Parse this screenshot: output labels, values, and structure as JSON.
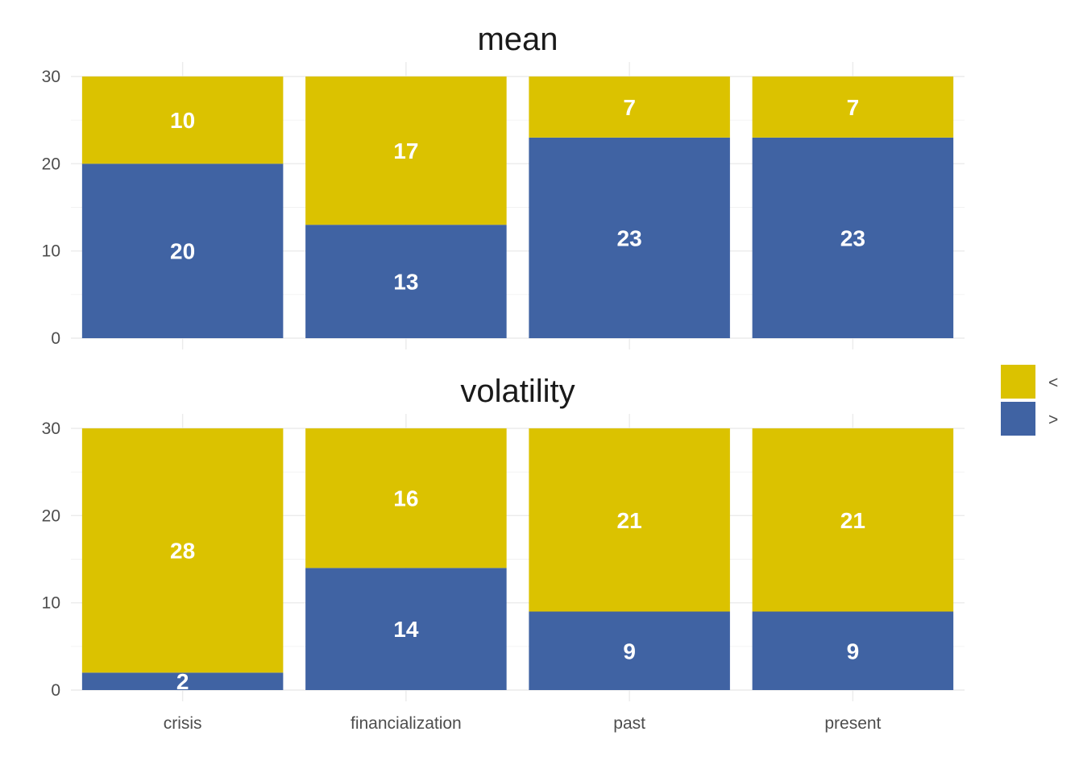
{
  "chart_data": {
    "type": "bar",
    "stacked": true,
    "categories": [
      "crisis",
      "financialization",
      "past",
      "present"
    ],
    "ylim": [
      0,
      30
    ],
    "yticks": [
      0,
      10,
      20,
      30
    ],
    "grid": true,
    "legend_position": "right",
    "legend": [
      {
        "key": "lt",
        "label": "<",
        "color": "#DBC200"
      },
      {
        "key": "gt",
        "label": ">",
        "color": "#4063A3"
      }
    ],
    "panels": [
      {
        "title": "mean",
        "series": [
          {
            "key": "gt",
            "values": [
              20,
              13,
              23,
              23
            ]
          },
          {
            "key": "lt",
            "values": [
              10,
              17,
              7,
              7
            ]
          }
        ]
      },
      {
        "title": "volatility",
        "series": [
          {
            "key": "gt",
            "values": [
              2,
              14,
              9,
              9
            ]
          },
          {
            "key": "lt",
            "values": [
              28,
              16,
              21,
              21
            ]
          }
        ]
      }
    ]
  }
}
